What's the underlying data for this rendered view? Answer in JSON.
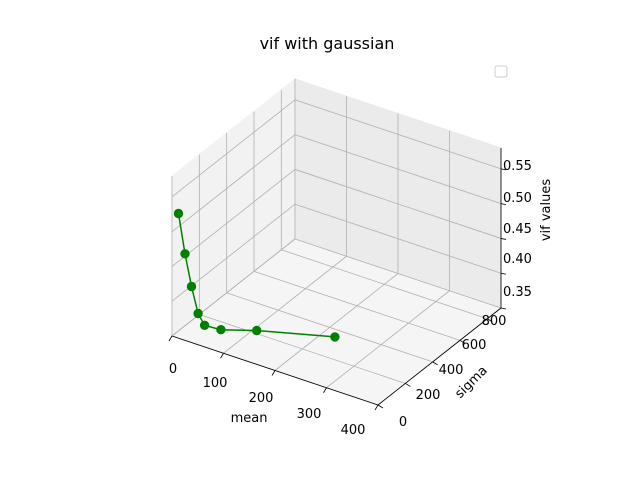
{
  "chart_data": {
    "type": "line",
    "projection": "3d",
    "title": "vif with gaussian",
    "xlabel": "mean",
    "ylabel": "sigma",
    "zlabel": "vif values",
    "xlim": [
      0,
      400
    ],
    "ylim": [
      0,
      900
    ],
    "zlim": [
      0.35,
      0.58
    ],
    "xticks": [
      0,
      100,
      200,
      300,
      400
    ],
    "yticks": [
      0,
      200,
      400,
      600,
      800
    ],
    "zticks": [
      0.35,
      0.4,
      0.45,
      0.5,
      0.55
    ],
    "xtick_labels": [
      "0",
      "100",
      "200",
      "300",
      "400"
    ],
    "ytick_labels": [
      "0",
      "200",
      "400",
      "600",
      "800"
    ],
    "ztick_labels": [
      "0.35",
      "0.40",
      "0.45",
      "0.50",
      "0.55"
    ],
    "grid": true,
    "legend": {
      "placement": "top-right",
      "entries": []
    },
    "series": [
      {
        "color": "#008000",
        "marker": "circle",
        "x": [
          10,
          20,
          30,
          40,
          50,
          75,
          130,
          250
        ],
        "y": [
          10,
          20,
          30,
          40,
          50,
          75,
          130,
          250
        ],
        "z": [
          0.527,
          0.47,
          0.424,
          0.386,
          0.37,
          0.366,
          0.37,
          0.372
        ]
      }
    ]
  }
}
